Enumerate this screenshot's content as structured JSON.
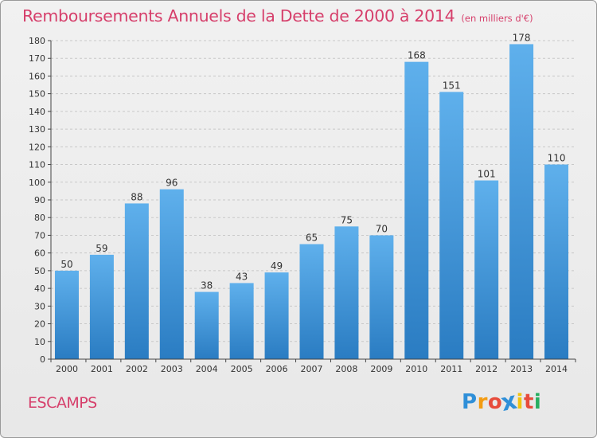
{
  "chart_data": {
    "type": "bar",
    "title": "Remboursements Annuels de la Dette de 2000 à 2014",
    "subtitle": "(en milliers d'€)",
    "categories": [
      "2000",
      "2001",
      "2002",
      "2003",
      "2004",
      "2005",
      "2006",
      "2007",
      "2008",
      "2009",
      "2010",
      "2011",
      "2012",
      "2013",
      "2014"
    ],
    "values": [
      50,
      59,
      88,
      96,
      38,
      43,
      49,
      65,
      75,
      70,
      168,
      151,
      101,
      178,
      110
    ],
    "ylim": [
      0,
      180
    ],
    "yticks": [
      0,
      10,
      20,
      30,
      40,
      50,
      60,
      70,
      80,
      90,
      100,
      110,
      120,
      130,
      140,
      150,
      160,
      170,
      180
    ],
    "grid": "horizontal dashed",
    "bar_color": "#3a8fd6"
  },
  "footer": {
    "commune": "ESCAMPS",
    "logo_letters": [
      "P",
      "r",
      "o",
      "x",
      "i",
      "t",
      "i"
    ],
    "logo_colors": [
      "#2f8fd8",
      "#f39c12",
      "#e74c3c",
      "#2f8fd8",
      "#f1c40f",
      "#e74c3c",
      "#27ae60"
    ]
  }
}
